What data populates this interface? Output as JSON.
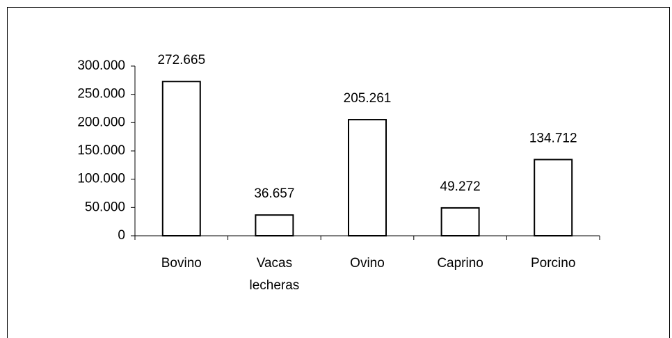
{
  "chart_data": {
    "type": "bar",
    "categories": [
      "Bovino",
      "Vacas lecheras",
      "Ovino",
      "Caprino",
      "Porcino"
    ],
    "values": [
      272665,
      36657,
      205261,
      49272,
      134712
    ],
    "value_labels": [
      "272.665",
      "36.657",
      "205.261",
      "49.272",
      "134.712"
    ],
    "color": "#ffffff",
    "ylim": [
      0,
      300000
    ],
    "yticks": [
      0,
      {
        "value": 50000,
        "label": "50.000"
      },
      {
        "value": 100000,
        "label": "100.000"
      },
      {
        "value": 150000,
        "label": "150.000"
      },
      {
        "value": 200000,
        "label": "200.000"
      },
      {
        "value": 250000,
        "label": "250.000"
      },
      {
        "value": 300000,
        "label": "300.000"
      }
    ],
    "grid": false
  }
}
